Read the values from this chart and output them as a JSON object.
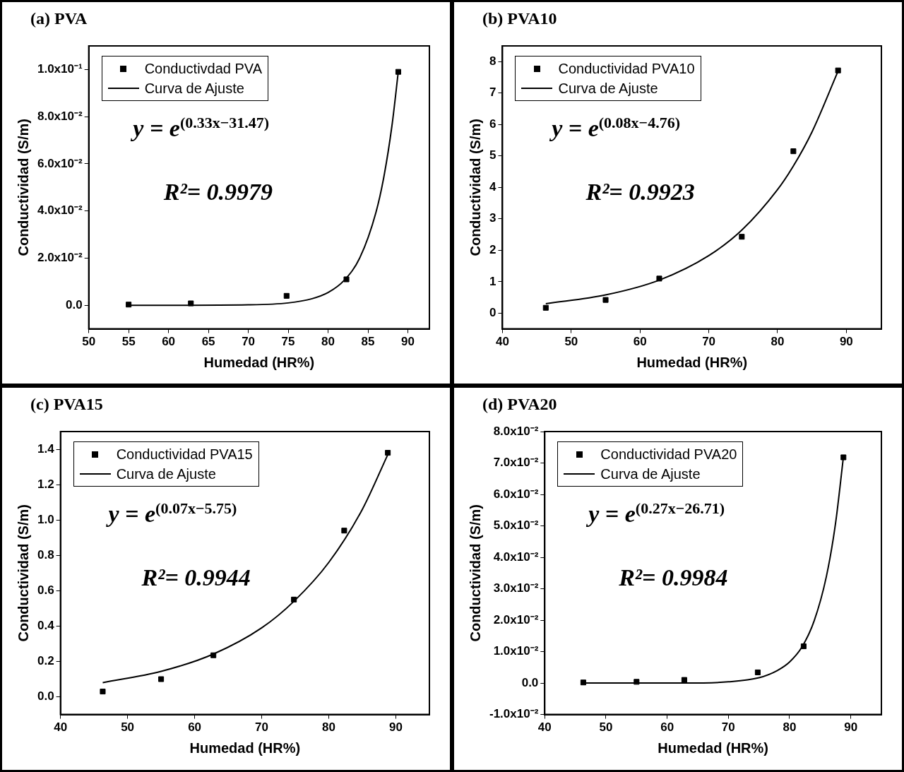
{
  "chart_data": [
    {
      "type": "scatter",
      "title": "(a) PVA",
      "xlabel": "Humedad (HR%)",
      "ylabel": "Conductividad (S/m)",
      "xlim": [
        50,
        92.7
      ],
      "xticks": [
        50,
        55,
        60,
        65,
        70,
        75,
        80,
        85,
        90
      ],
      "ylim": [
        -0.01,
        0.11
      ],
      "yticks": [
        {
          "value": 0,
          "label": "0.0"
        },
        {
          "value": 0.02,
          "label": "2.0x10⁻²"
        },
        {
          "value": 0.04,
          "label": "4.0x10⁻²"
        },
        {
          "value": 0.06,
          "label": "6.0x10⁻²"
        },
        {
          "value": 0.08,
          "label": "8.0x10⁻²"
        },
        {
          "value": 0.1,
          "label": "1.0x10⁻¹"
        }
      ],
      "legend": "top left",
      "annotations": [
        "y = e$^{(0.33x−31.47)}$",
        "R²= 0.9979"
      ],
      "series": [
        {
          "name": "Conductivdad PVA",
          "marker": "square",
          "color": "#000000",
          "x": [
            55,
            62.8,
            74.8,
            82.3,
            88.8
          ],
          "values": [
            0.0003,
            0.0008,
            0.004,
            0.011,
            0.099
          ]
        },
        {
          "name": "Curva de Ajuste",
          "type": "line",
          "marker": "none",
          "color": "#000000",
          "x": [
            55,
            60,
            70,
            75,
            78,
            80,
            82,
            84,
            86,
            87,
            88,
            88.8
          ],
          "values": [
            0,
            0,
            0.0002,
            0.001,
            0.0028,
            0.0054,
            0.0105,
            0.0203,
            0.0394,
            0.0546,
            0.076,
            0.099
          ]
        }
      ]
    },
    {
      "type": "scatter",
      "title": "(b) PVA10",
      "xlabel": "Humedad (HR%)",
      "ylabel": "Conductividad (S/m)",
      "xlim": [
        40,
        95.1
      ],
      "xticks": [
        40,
        50,
        60,
        70,
        80,
        90
      ],
      "ylim": [
        -0.5,
        8.5
      ],
      "yticks": [
        0,
        1,
        2,
        3,
        4,
        5,
        6,
        7,
        8
      ],
      "legend": "top left",
      "annotations": [
        "y = e$^{(0.08x−4.76)}$",
        "R²= 0.9923"
      ],
      "series": [
        {
          "name": "Conductividad PVA10",
          "marker": "square",
          "color": "#000000",
          "x": [
            46.3,
            55,
            62.8,
            74.8,
            82.3,
            88.8
          ],
          "values": [
            0.17,
            0.42,
            1.1,
            2.43,
            5.15,
            7.72
          ]
        },
        {
          "name": "Curva de Ajuste",
          "type": "line",
          "marker": "none",
          "color": "#000000",
          "x": [
            46.3,
            55,
            62.8,
            70,
            74.8,
            80,
            82.3,
            85,
            88.8
          ],
          "values": [
            0.3,
            0.58,
            1.05,
            1.83,
            2.64,
            3.93,
            4.68,
            5.76,
            7.7
          ]
        }
      ]
    },
    {
      "type": "scatter",
      "title": "(c) PVA15",
      "xlabel": "Humedad (HR%)",
      "ylabel": "Conductividad (S/m)",
      "xlim": [
        40,
        95
      ],
      "xticks": [
        40,
        50,
        60,
        70,
        80,
        90
      ],
      "ylim": [
        -0.1,
        1.5
      ],
      "yticks": [
        {
          "value": 0,
          "label": "0.0"
        },
        0.2,
        0.4,
        0.6,
        0.8,
        {
          "value": 1,
          "label": "1.0"
        },
        1.2,
        1.4
      ],
      "legend": "top left",
      "annotations": [
        "y = e$^{(0.07x−5.75)}$",
        "R²= 0.9944"
      ],
      "series": [
        {
          "name": "Conductividad PVA15",
          "marker": "square",
          "color": "#000000",
          "x": [
            46.3,
            55,
            62.8,
            74.8,
            82.3,
            88.8
          ],
          "values": [
            0.03,
            0.1,
            0.235,
            0.55,
            0.94,
            1.38
          ]
        },
        {
          "name": "Curva de Ajuste",
          "type": "line",
          "marker": "none",
          "color": "#000000",
          "x": [
            46.3,
            55,
            62.8,
            70,
            74.8,
            80,
            85,
            88.8
          ],
          "values": [
            0.08,
            0.144,
            0.242,
            0.39,
            0.54,
            0.76,
            1.06,
            1.37
          ]
        }
      ]
    },
    {
      "type": "scatter",
      "title": "(d) PVA20",
      "xlabel": "Humedad (HR%)",
      "ylabel": "Conductividad (S/m)",
      "xlim": [
        40,
        95
      ],
      "xticks": [
        40,
        50,
        60,
        70,
        80,
        90
      ],
      "ylim": [
        -0.01,
        0.08
      ],
      "yticks": [
        {
          "value": -0.01,
          "label": "-1.0x10⁻²"
        },
        {
          "value": 0,
          "label": "0.0"
        },
        {
          "value": 0.01,
          "label": "1.0x10⁻²"
        },
        {
          "value": 0.02,
          "label": "2.0x10⁻²"
        },
        {
          "value": 0.03,
          "label": "3.0x10⁻²"
        },
        {
          "value": 0.04,
          "label": "4.0x10⁻²"
        },
        {
          "value": 0.05,
          "label": "5.0x10⁻²"
        },
        {
          "value": 0.06,
          "label": "6.0x10⁻²"
        },
        {
          "value": 0.07,
          "label": "7.0x10⁻²"
        },
        {
          "value": 0.08,
          "label": "8.0x10⁻²"
        }
      ],
      "legend": "top left",
      "annotations": [
        "y = e$^{(0.27x−26.71)}$",
        "R²= 0.9984"
      ],
      "series": [
        {
          "name": "Conductividad PVA20",
          "marker": "square",
          "color": "#000000",
          "x": [
            46.3,
            55,
            62.8,
            74.8,
            82.3,
            88.8
          ],
          "values": [
            0.0002,
            0.0004,
            0.001,
            0.0034,
            0.0117,
            0.0718
          ]
        },
        {
          "name": "Curva de Ajuste",
          "type": "line",
          "marker": "none",
          "color": "#000000",
          "x": [
            46.3,
            55,
            62.8,
            70,
            75,
            78,
            80,
            82,
            84,
            86,
            87.5,
            88.8
          ],
          "values": [
            0,
            0,
            0,
            0.0004,
            0.0017,
            0.004,
            0.0067,
            0.0114,
            0.0197,
            0.0338,
            0.0507,
            0.072
          ]
        }
      ]
    }
  ]
}
